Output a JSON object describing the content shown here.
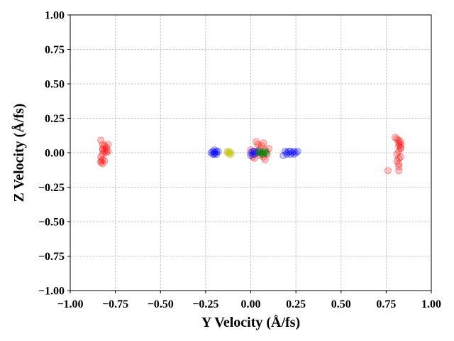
{
  "chart_data": {
    "type": "scatter",
    "title": "",
    "xlabel": "Y Velocity (Å/fs)",
    "ylabel": "Z Velocity (Å/fs)",
    "xlim": [
      -1.0,
      1.0
    ],
    "ylim": [
      -1.0,
      1.0
    ],
    "grid": true,
    "x_ticks": [
      -1.0,
      -0.75,
      -0.5,
      -0.25,
      0.0,
      0.25,
      0.5,
      0.75,
      1.0
    ],
    "y_ticks": [
      -1.0,
      -0.75,
      -0.5,
      -0.25,
      0.0,
      0.25,
      0.5,
      0.75,
      1.0
    ],
    "x_tick_labels": [
      "−1.00",
      "−0.75",
      "−0.50",
      "−0.25",
      "0.00",
      "0.25",
      "0.50",
      "0.75",
      "1.00"
    ],
    "y_tick_labels": [
      "−1.00",
      "−0.75",
      "−0.50",
      "−0.25",
      "0.00",
      "0.25",
      "0.50",
      "0.75",
      "1.00"
    ],
    "series": [
      {
        "color": "#ff0000",
        "points": [
          [
            -0.83,
            0.09
          ],
          [
            -0.82,
            0.06
          ],
          [
            -0.81,
            0.05
          ],
          [
            -0.8,
            0.04
          ],
          [
            -0.79,
            0.06
          ],
          [
            -0.82,
            0.03
          ],
          [
            -0.81,
            0.01
          ],
          [
            -0.8,
            0.02
          ],
          [
            -0.79,
            0.01
          ],
          [
            -0.82,
            -0.01
          ],
          [
            -0.83,
            -0.03
          ],
          [
            -0.82,
            -0.05
          ],
          [
            -0.83,
            -0.06
          ],
          [
            -0.82,
            -0.08
          ],
          [
            -0.81,
            -0.06
          ],
          [
            -0.83,
            -0.07
          ],
          [
            -0.8,
            0.0
          ],
          [
            -0.82,
            0.02
          ],
          [
            0.8,
            0.11
          ],
          [
            0.81,
            0.1
          ],
          [
            0.82,
            0.09
          ],
          [
            0.83,
            0.08
          ],
          [
            0.82,
            0.07
          ],
          [
            0.83,
            0.06
          ],
          [
            0.82,
            0.05
          ],
          [
            0.83,
            0.03
          ],
          [
            0.82,
            0.01
          ],
          [
            0.81,
            -0.01
          ],
          [
            0.83,
            -0.03
          ],
          [
            0.82,
            -0.04
          ],
          [
            0.81,
            -0.06
          ],
          [
            0.82,
            -0.08
          ],
          [
            0.82,
            -0.1
          ],
          [
            0.82,
            -0.13
          ],
          [
            0.76,
            -0.13
          ],
          [
            0.83,
            0.04
          ],
          [
            0.01,
            -0.03
          ],
          [
            0.02,
            -0.04
          ],
          [
            0.03,
            0.08
          ],
          [
            0.04,
            0.06
          ],
          [
            0.05,
            0.03
          ],
          [
            0.06,
            0.05
          ],
          [
            0.07,
            0.07
          ],
          [
            0.08,
            0.02
          ],
          [
            0.1,
            0.03
          ],
          [
            0.07,
            -0.03
          ],
          [
            0.08,
            -0.05
          ],
          [
            0.05,
            -0.02
          ],
          [
            0.0,
            0.02
          ],
          [
            0.02,
            0.01
          ],
          [
            0.09,
            -0.01
          ]
        ]
      },
      {
        "color": "#0000ff",
        "points": [
          [
            -0.2,
            0.0
          ],
          [
            -0.21,
            0.01
          ],
          [
            -0.19,
            -0.01
          ],
          [
            -0.2,
            0.02
          ],
          [
            -0.21,
            -0.01
          ],
          [
            -0.19,
            0.01
          ],
          [
            -0.2,
            -0.01
          ],
          [
            -0.18,
            0.01
          ],
          [
            -0.22,
            0.0
          ],
          [
            -0.2,
            0.0
          ],
          [
            0.0,
            0.0
          ],
          [
            0.01,
            0.01
          ],
          [
            0.02,
            -0.01
          ],
          [
            0.03,
            0.0
          ],
          [
            0.01,
            -0.01
          ],
          [
            0.0,
            -0.02
          ],
          [
            0.02,
            0.01
          ],
          [
            0.04,
            0.01
          ],
          [
            0.19,
            0.01
          ],
          [
            0.2,
            0.0
          ],
          [
            0.21,
            0.01
          ],
          [
            0.22,
            -0.01
          ],
          [
            0.23,
            0.0
          ],
          [
            0.24,
            0.01
          ],
          [
            0.25,
            0.0
          ],
          [
            0.26,
            0.01
          ],
          [
            0.2,
            -0.01
          ],
          [
            0.22,
            0.01
          ],
          [
            0.18,
            -0.02
          ],
          [
            0.24,
            -0.01
          ]
        ]
      },
      {
        "color": "#bfbf00",
        "points": [
          [
            -0.13,
            0.0
          ],
          [
            -0.12,
            0.01
          ],
          [
            -0.11,
            0.0
          ],
          [
            -0.12,
            -0.01
          ],
          [
            -0.13,
            0.01
          ],
          [
            -0.11,
            -0.01
          ],
          [
            -0.12,
            0.0
          ]
        ]
      },
      {
        "color": "#008000",
        "points": [
          [
            0.04,
            0.0
          ],
          [
            0.05,
            0.0
          ],
          [
            0.06,
            0.0
          ],
          [
            0.07,
            0.0
          ],
          [
            0.08,
            0.0
          ],
          [
            0.09,
            0.0
          ],
          [
            0.05,
            0.01
          ],
          [
            0.07,
            -0.01
          ],
          [
            0.08,
            0.01
          ],
          [
            0.06,
            -0.01
          ]
        ]
      }
    ]
  }
}
